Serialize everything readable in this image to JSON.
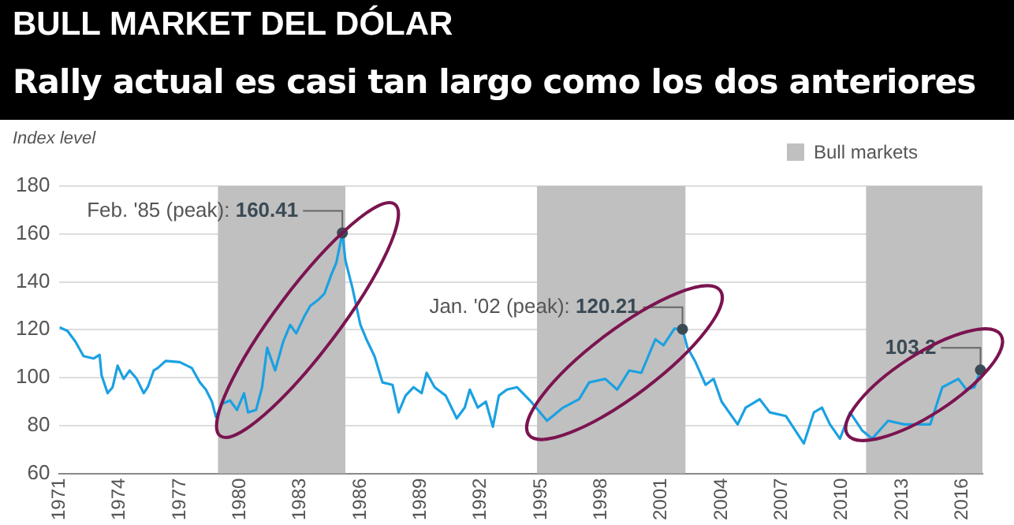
{
  "chart_data": {
    "type": "line",
    "title": "BULL MARKET DEL DÓLAR",
    "subtitle": "Rally actual es casi tan largo como los dos anteriores",
    "ylabel": "Index level",
    "series": [
      {
        "color": "#1ba1e2",
        "x": [
          1971.0,
          1971.4,
          1971.8,
          1972.2,
          1972.7,
          1973.0,
          1973.1,
          1973.4,
          1973.65,
          1973.9,
          1974.2,
          1974.5,
          1974.85,
          1975.2,
          1975.4,
          1975.7,
          1975.9,
          1976.3,
          1977.0,
          1977.6,
          1978.0,
          1978.3,
          1978.6,
          1978.8,
          1979.1,
          1979.5,
          1979.85,
          1980.2,
          1980.4,
          1980.8,
          1981.1,
          1981.35,
          1981.75,
          1982.15,
          1982.5,
          1982.8,
          1983.2,
          1983.5,
          1983.9,
          1984.2,
          1984.55,
          1984.8,
          1985.1,
          1985.25,
          1985.6,
          1986.0,
          1986.3,
          1986.7,
          1987.1,
          1987.6,
          1987.9,
          1988.25,
          1988.65,
          1989.05,
          1989.3,
          1989.7,
          1990.25,
          1990.8,
          1991.2,
          1991.45,
          1991.85,
          1992.25,
          1992.6,
          1992.9,
          1993.3,
          1993.8,
          1994.5,
          1995.3,
          1996.1,
          1996.9,
          1997.4,
          1998.2,
          1998.8,
          1999.4,
          2000.0,
          2000.7,
          2001.1,
          2001.65,
          2002.05,
          2002.3,
          2002.7,
          2003.2,
          2003.6,
          2004.0,
          2004.8,
          2005.2,
          2005.9,
          2006.4,
          2007.2,
          2008.1,
          2008.6,
          2009.0,
          2009.4,
          2009.9,
          2010.4,
          2011.0,
          2011.5,
          2012.3,
          2013.1,
          2013.9,
          2014.4,
          2015.0,
          2015.8,
          2016.2,
          2016.6,
          2016.9
        ],
        "values": [
          121,
          119.5,
          115,
          109,
          108,
          109.5,
          101,
          93.5,
          96,
          105,
          99.5,
          103,
          99.5,
          93.5,
          96,
          103,
          104,
          107,
          106.5,
          104,
          98,
          95,
          90,
          83.5,
          89,
          90.5,
          86.5,
          93.5,
          85.5,
          86.5,
          96,
          112.5,
          103,
          115,
          122,
          118.5,
          125.5,
          130,
          132.5,
          135,
          143,
          148,
          160.41,
          149,
          137.5,
          122,
          116,
          109,
          98,
          97,
          85.5,
          92.5,
          96,
          93.5,
          102,
          96,
          92.5,
          83,
          87.5,
          95,
          87.5,
          90,
          79.5,
          92.5,
          95,
          96,
          90,
          82,
          87.5,
          91,
          98,
          99.5,
          95,
          103,
          102,
          116,
          113.5,
          120.5,
          120.21,
          112.5,
          106.5,
          97,
          99.5,
          90,
          80.5,
          87.5,
          91,
          85.5,
          84,
          72.5,
          85.5,
          87.5,
          80.5,
          74.5,
          85.5,
          78,
          74.5,
          82,
          80.5,
          80.5,
          80.5,
          96,
          99.5,
          95,
          96,
          103.2
        ]
      }
    ],
    "xlim": [
      1971,
      2017
    ],
    "xticks": [
      1971,
      1974,
      1977,
      1980,
      1983,
      1986,
      1989,
      1992,
      1995,
      1998,
      2001,
      2004,
      2007,
      2010,
      2013,
      2016
    ],
    "ylim": [
      60,
      180
    ],
    "yticks": [
      60,
      80,
      100,
      120,
      140,
      160,
      180
    ],
    "grid": "y",
    "legend": "top right",
    "bands": [
      {
        "axis": "x",
        "from": 1978.9,
        "to": 1985.25,
        "label": "Bull markets",
        "color": "#c0c0c0"
      },
      {
        "axis": "x",
        "from": 1994.8,
        "to": 2002.2,
        "color": "#c0c0c0"
      },
      {
        "axis": "x",
        "from": 2011.2,
        "to": 2017,
        "color": "#c0c0c0"
      }
    ],
    "annotations": [
      {
        "text": "Feb. '85 (peak): 160.41",
        "x": 1985.1,
        "y": 160.41
      },
      {
        "text": "Jan. '02 (peak): 120.21",
        "x": 2002.05,
        "y": 120.21
      },
      {
        "text": "103.2",
        "x": 2016.9,
        "y": 103.2
      }
    ]
  }
}
